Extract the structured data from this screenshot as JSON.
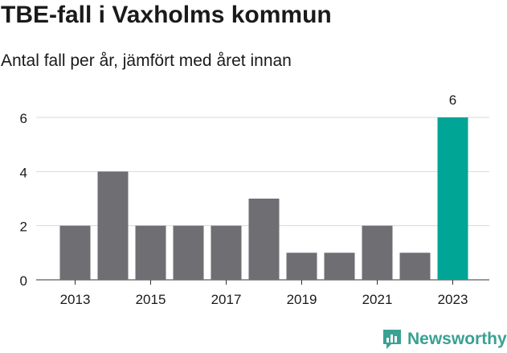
{
  "header": {
    "title": "TBE-fall i Vaxholms kommun",
    "subtitle": "Antal fall per år, jämfört med året innan"
  },
  "brand": {
    "name": "Newsworthy",
    "icon": "bar-chart-logo-icon"
  },
  "colors": {
    "bar": "#6e6e73",
    "highlight": "#00a595",
    "grid": "#d9d9d9",
    "brand": "#3aa193"
  },
  "chart_data": {
    "type": "bar",
    "title": "TBE-fall i Vaxholms kommun",
    "subtitle": "Antal fall per år, jämfört med året innan",
    "categories": [
      "2013",
      "2014",
      "2015",
      "2016",
      "2017",
      "2018",
      "2019",
      "2020",
      "2021",
      "2022",
      "2023"
    ],
    "values": [
      2,
      4,
      2,
      2,
      2,
      3,
      1,
      1,
      2,
      1,
      6
    ],
    "x_tick_labels": [
      "2013",
      "2015",
      "2017",
      "2019",
      "2021",
      "2023"
    ],
    "y_ticks": [
      0,
      2,
      4,
      6
    ],
    "ylim": [
      0,
      6
    ],
    "highlight_category": "2023",
    "data_labels": [
      {
        "category": "2023",
        "text": "6"
      }
    ],
    "xlabel": "",
    "ylabel": "",
    "grid": true,
    "legend": "none"
  }
}
